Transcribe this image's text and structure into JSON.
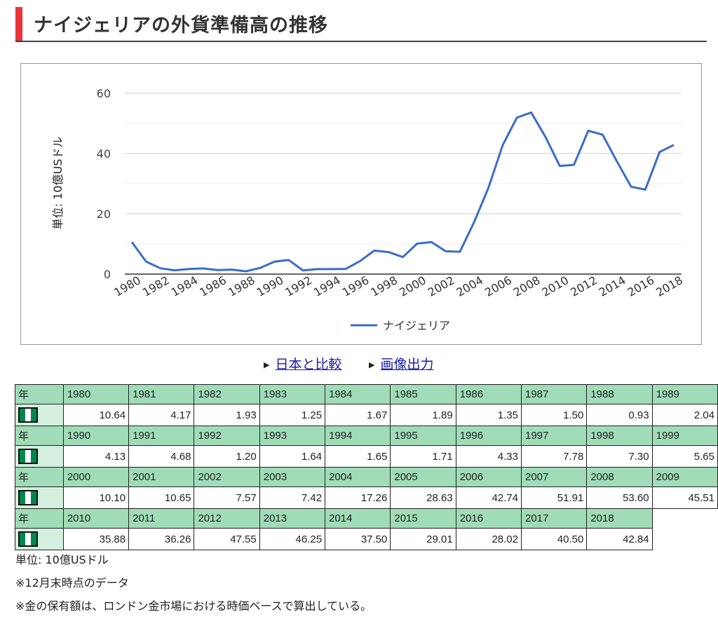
{
  "page": {
    "title": "ナイジェリアの外貨準備高の推移",
    "accent_color": "#e8343b"
  },
  "chart_data": {
    "type": "line",
    "ylabel": "単位: 10億USドル",
    "ylim": [
      0,
      60
    ],
    "yticks": [
      0,
      20,
      40,
      60
    ],
    "x": [
      1980,
      1981,
      1982,
      1983,
      1984,
      1985,
      1986,
      1987,
      1988,
      1989,
      1990,
      1991,
      1992,
      1993,
      1994,
      1995,
      1996,
      1997,
      1998,
      1999,
      2000,
      2001,
      2002,
      2003,
      2004,
      2005,
      2006,
      2007,
      2008,
      2009,
      2010,
      2011,
      2012,
      2013,
      2014,
      2015,
      2016,
      2017,
      2018
    ],
    "x_tick_labels": [
      "1980",
      "1982",
      "1984",
      "1986",
      "1988",
      "1990",
      "1992",
      "1994",
      "1996",
      "1998",
      "2000",
      "2002",
      "2004",
      "2006",
      "2008",
      "2010",
      "2012",
      "2014",
      "2016",
      "2018"
    ],
    "grid": true,
    "legend_position": "bottom",
    "series": [
      {
        "name": "ナイジェリア",
        "color": "#3b6cc9",
        "values": [
          10.64,
          4.17,
          1.93,
          1.25,
          1.67,
          1.89,
          1.35,
          1.5,
          0.93,
          2.04,
          4.13,
          4.68,
          1.2,
          1.64,
          1.65,
          1.71,
          4.33,
          7.78,
          7.3,
          5.65,
          10.1,
          10.65,
          7.57,
          7.42,
          17.26,
          28.63,
          42.74,
          51.91,
          53.6,
          45.51,
          35.88,
          36.26,
          47.55,
          46.25,
          37.5,
          29.01,
          28.02,
          40.5,
          42.84
        ]
      }
    ]
  },
  "links": {
    "compare": "日本と比較",
    "export_image": "画像出力"
  },
  "table": {
    "year_header": "年",
    "flag_icon": "nigeria-flag-icon",
    "flag_colors": [
      "#008751",
      "#ffffff",
      "#008751"
    ],
    "rows": [
      {
        "years": [
          "1980",
          "1981",
          "1982",
          "1983",
          "1984",
          "1985",
          "1986",
          "1987",
          "1988",
          "1989"
        ],
        "values": [
          "10.64",
          "4.17",
          "1.93",
          "1.25",
          "1.67",
          "1.89",
          "1.35",
          "1.50",
          "0.93",
          "2.04"
        ]
      },
      {
        "years": [
          "1990",
          "1991",
          "1992",
          "1993",
          "1994",
          "1995",
          "1996",
          "1997",
          "1998",
          "1999"
        ],
        "values": [
          "4.13",
          "4.68",
          "1.20",
          "1.64",
          "1.65",
          "1.71",
          "4.33",
          "7.78",
          "7.30",
          "5.65"
        ]
      },
      {
        "years": [
          "2000",
          "2001",
          "2002",
          "2003",
          "2004",
          "2005",
          "2006",
          "2007",
          "2008",
          "2009"
        ],
        "values": [
          "10.10",
          "10.65",
          "7.57",
          "7.42",
          "17.26",
          "28.63",
          "42.74",
          "51.91",
          "53.60",
          "45.51"
        ]
      },
      {
        "years": [
          "2010",
          "2011",
          "2012",
          "2013",
          "2014",
          "2015",
          "2016",
          "2017",
          "2018"
        ],
        "values": [
          "35.88",
          "36.26",
          "47.55",
          "46.25",
          "37.50",
          "29.01",
          "28.02",
          "40.50",
          "42.84"
        ]
      }
    ]
  },
  "notes": {
    "unit": "単位: 10億USドル",
    "note1": "※12月末時点のデータ",
    "note2": "※金の保有額は、ロンドン金市場における時価ベースで算出している。"
  }
}
